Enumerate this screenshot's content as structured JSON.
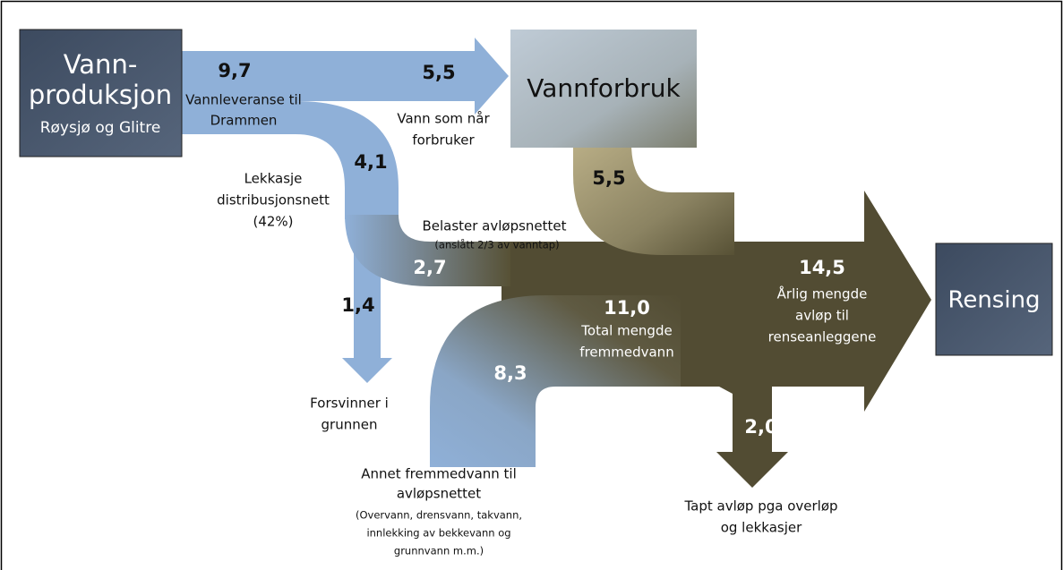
{
  "nodes": {
    "production": {
      "lines": [
        "Vann-",
        "produksjon"
      ],
      "subtitle": "Røysjø og Glitre"
    },
    "consumption": {
      "label": "Vannforbruk"
    },
    "treatment": {
      "label": "Rensing"
    }
  },
  "flows": [
    {
      "value": "9,7",
      "lines": [
        "Vannleveranse til",
        "Drammen"
      ]
    },
    {
      "value": "5,5",
      "lines": [
        "Vann som når",
        "forbruker"
      ]
    },
    {
      "value": "4,1",
      "lines": [
        "Lekkasje",
        "distribusjonsnett",
        "(42%)"
      ]
    },
    {
      "value": "2,7",
      "lines": [
        "Belaster avløpsnettet"
      ],
      "note": [
        "(anslått 2/3 av vanntap)"
      ]
    },
    {
      "value": "1,4",
      "lines": [
        "Forsvinner i",
        "grunnen"
      ]
    },
    {
      "value": "5,5"
    },
    {
      "value": "11,0",
      "lines": [
        "Total mengde",
        "fremmedvann"
      ]
    },
    {
      "value": "14,5",
      "lines": [
        "Årlig mengde",
        "avløp til",
        "renseanleggene"
      ]
    },
    {
      "value": "8,3",
      "lines": [
        "Annet fremmedvann til",
        "avløpsnettet"
      ],
      "note": [
        "(Overvann, drensvann, takvann,",
        "innlekking av bekkevann og",
        "grunnvann m.m.)"
      ]
    },
    {
      "value": "2,0",
      "lines": [
        "Tapt avløp pga overløp",
        "og lekkasjer"
      ]
    }
  ]
}
